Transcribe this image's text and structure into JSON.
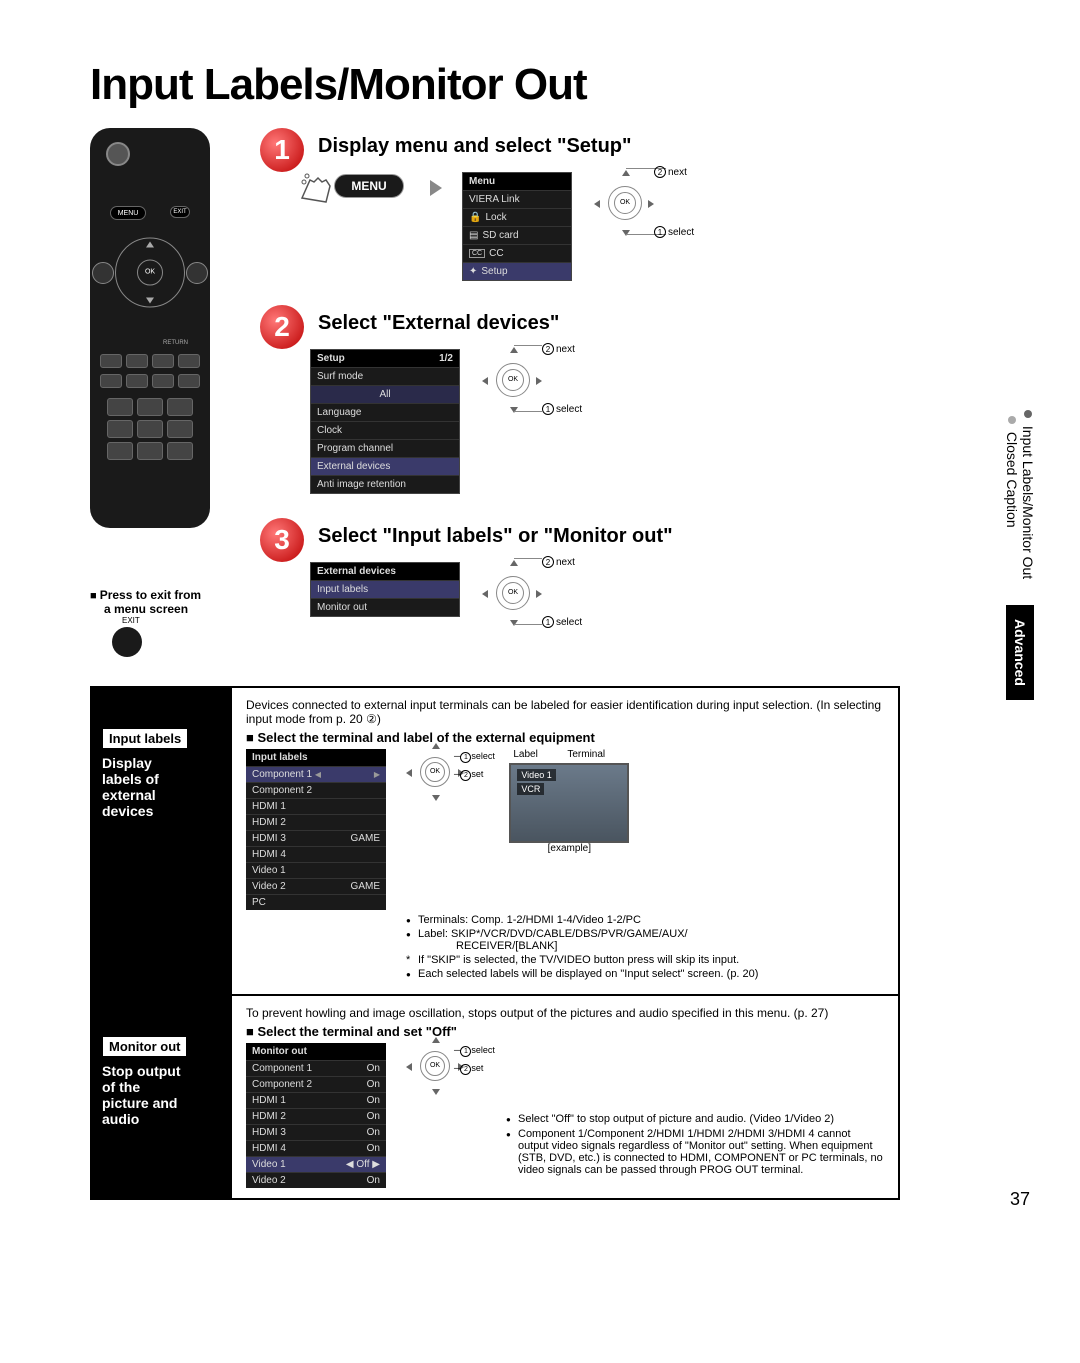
{
  "page_title": "Input Labels/Monitor Out",
  "page_number": "37",
  "side_tabs": {
    "item1": "Input Labels/Monitor Out",
    "item2": "Closed Caption",
    "advanced": "Advanced"
  },
  "remote": {
    "menu": "MENU",
    "exit": "EXIT",
    "ok": "OK",
    "return": "RETURN"
  },
  "step1": {
    "header": "Display menu and select \"Setup\"",
    "menu_button": "MENU",
    "nav": {
      "ok": "OK",
      "next": "next",
      "select": "select",
      "n2": "2",
      "n1": "1"
    },
    "onscreen": {
      "title": "Menu",
      "items": [
        "VIERA Link",
        "Lock",
        "SD card",
        "CC",
        "Setup"
      ]
    }
  },
  "step2": {
    "header": "Select \"External devices\"",
    "nav": {
      "ok": "OK",
      "next": "next",
      "select": "select",
      "n2": "2",
      "n1": "1"
    },
    "onscreen": {
      "title": "Setup",
      "page": "1/2",
      "items": [
        "Surf mode",
        "All",
        "Language",
        "Clock",
        "Program channel",
        "External devices",
        "Anti image retention"
      ]
    }
  },
  "step3": {
    "header": "Select \"Input labels\" or \"Monitor out\"",
    "nav": {
      "ok": "OK",
      "next": "next",
      "select": "select",
      "n2": "2",
      "n1": "1"
    },
    "onscreen": {
      "title": "External devices",
      "items": [
        "Input labels",
        "Monitor out"
      ]
    }
  },
  "exit_note": {
    "line1": "Press to exit from",
    "line2": "a menu screen",
    "label": "EXIT"
  },
  "input_labels_box": {
    "label": "Input labels",
    "desc1": "Display",
    "desc2": "labels of",
    "desc3": "external",
    "desc4": "devices",
    "intro": "Devices connected to external input terminals can be labeled for easier identification during input selection. (In selecting input mode from p. 20 ②)",
    "subhead": "Select the terminal and label of the external equipment",
    "panel": {
      "title": "Input labels",
      "rows": [
        {
          "name": "Component 1",
          "val": "",
          "hi": true,
          "tri": true
        },
        {
          "name": "Component 2",
          "val": ""
        },
        {
          "name": "HDMI 1",
          "val": ""
        },
        {
          "name": "HDMI 2",
          "val": ""
        },
        {
          "name": "HDMI 3",
          "val": "GAME"
        },
        {
          "name": "HDMI 4",
          "val": ""
        },
        {
          "name": "Video 1",
          "val": ""
        },
        {
          "name": "Video 2",
          "val": "GAME"
        },
        {
          "name": "PC",
          "val": ""
        }
      ]
    },
    "oknav": {
      "ok": "OK",
      "select": "select",
      "set": "set",
      "n1": "1",
      "n2": "2"
    },
    "example": {
      "label_word": "Label",
      "terminal_word": "Terminal",
      "tag1": "Video 1",
      "tag2": "VCR",
      "caption": "[example]"
    },
    "bullets": {
      "b1": "Terminals:  Comp. 1-2/HDMI 1-4/Video 1-2/PC",
      "b2": "Label:  SKIP*/VCR/DVD/CABLE/DBS/PVR/GAME/AUX/",
      "b2b": "RECEIVER/[BLANK]",
      "b3": "If \"SKIP\" is selected, the TV/VIDEO button press will skip its input.",
      "b4": "Each selected labels will be displayed on \"Input select\" screen. (p. 20)"
    }
  },
  "monitor_out_box": {
    "label": "Monitor out",
    "desc1": "Stop output",
    "desc2": "of the",
    "desc3": "picture and",
    "desc4": "audio",
    "intro": "To prevent howling and image oscillation, stops output of the pictures and audio specified in this menu. (p. 27)",
    "subhead": "Select the terminal and set \"Off\"",
    "panel": {
      "title": "Monitor out",
      "rows": [
        {
          "name": "Component 1",
          "val": "On"
        },
        {
          "name": "Component 2",
          "val": "On"
        },
        {
          "name": "HDMI 1",
          "val": "On"
        },
        {
          "name": "HDMI 2",
          "val": "On"
        },
        {
          "name": "HDMI 3",
          "val": "On"
        },
        {
          "name": "HDMI 4",
          "val": "On"
        },
        {
          "name": "Video 1",
          "val": "Off",
          "hi": true,
          "tri": true
        },
        {
          "name": "Video 2",
          "val": "On"
        }
      ]
    },
    "oknav": {
      "ok": "OK",
      "select": "select",
      "set": "set",
      "n1": "1",
      "n2": "2"
    },
    "notes": {
      "n1": "Select \"Off\" to stop output of picture and audio. (Video 1/Video 2)",
      "n2": "Component 1/Component 2/HDMI 1/HDMI 2/HDMI 3/HDMI 4 cannot output video signals regardless of \"Monitor out\" setting. When equipment (STB, DVD, etc.) is connected to HDMI, COMPONENT or PC terminals, no video signals can be passed through PROG OUT terminal."
    }
  }
}
